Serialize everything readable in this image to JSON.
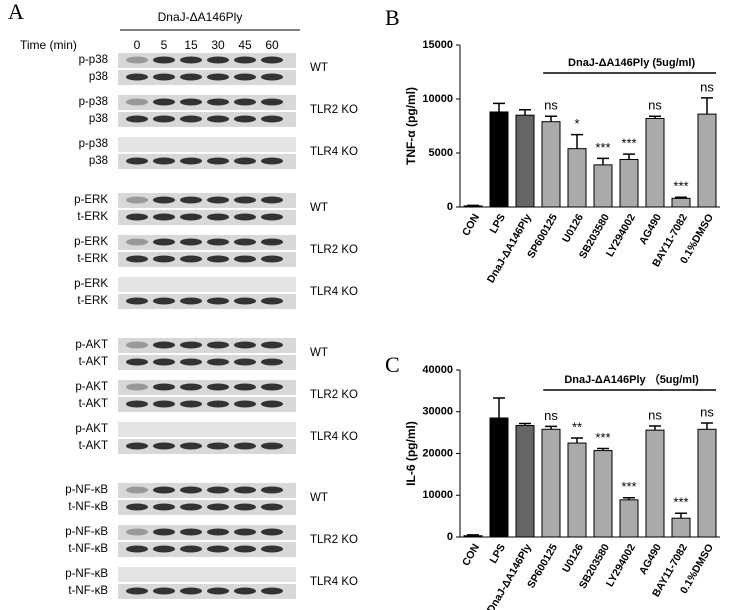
{
  "panel_a": {
    "letter": "A",
    "treatment": "DnaJ-ΔA146Ply",
    "time_label": "Time (min)",
    "times": [
      0,
      5,
      15,
      30,
      45,
      60
    ],
    "groups": [
      [
        {
          "rows": [
            "p-p38",
            "p38"
          ],
          "condition": "WT"
        },
        {
          "rows": [
            "p-p38",
            "p38"
          ],
          "condition": "TLR2 KO"
        },
        {
          "rows": [
            "p-p38",
            "p38"
          ],
          "condition": "TLR4 KO"
        }
      ],
      [
        {
          "rows": [
            "p-ERK",
            "t-ERK"
          ],
          "condition": "WT"
        },
        {
          "rows": [
            "p-ERK",
            "t-ERK"
          ],
          "condition": "TLR2 KO"
        },
        {
          "rows": [
            "p-ERK",
            "t-ERK"
          ],
          "condition": "TLR4 KO"
        }
      ],
      [
        {
          "rows": [
            "p-AKT",
            "t-AKT"
          ],
          "condition": "WT"
        },
        {
          "rows": [
            "p-AKT",
            "t-AKT"
          ],
          "condition": "TLR2 KO"
        },
        {
          "rows": [
            "p-AKT",
            "t-AKT"
          ],
          "condition": "TLR4 KO"
        }
      ],
      [
        {
          "rows": [
            "p-NF-κB",
            "t-NF-κB"
          ],
          "condition": "WT"
        },
        {
          "rows": [
            "p-NF-κB",
            "t-NF-κB"
          ],
          "condition": "TLR2 KO"
        },
        {
          "rows": [
            "p-NF-κB",
            "t-NF-κB"
          ],
          "condition": "TLR4 KO"
        }
      ]
    ]
  },
  "chart_data": [
    {
      "type": "bar",
      "panel": "B",
      "y_label": "TNF-α (pg/ml)",
      "bracket_label": "DnaJ-ΔA146Ply (5ug/ml)",
      "categories": [
        "CON",
        "LPS",
        "DnaJ-ΔA146Ply",
        "SP600125",
        "U0126",
        "SB203580",
        "LY294002",
        "AG490",
        "BAY11-7082",
        "0.1%DMSO"
      ],
      "values": [
        100,
        8800,
        8500,
        7900,
        5400,
        3900,
        4400,
        8200,
        800,
        8600
      ],
      "errors": [
        50,
        800,
        500,
        500,
        1300,
        600,
        500,
        200,
        100,
        1500
      ],
      "colors": [
        "#000000",
        "#000000",
        "#666666",
        "#aaaaaa",
        "#aaaaaa",
        "#aaaaaa",
        "#aaaaaa",
        "#aaaaaa",
        "#aaaaaa",
        "#aaaaaa"
      ],
      "significance": [
        null,
        null,
        null,
        "ns",
        "*",
        "***",
        "***",
        "ns",
        "***",
        "ns"
      ],
      "ylim": [
        0,
        15000
      ],
      "yticks": [
        0,
        5000,
        10000,
        15000
      ]
    },
    {
      "type": "bar",
      "panel": "C",
      "y_label": "IL-6 (pg/ml)",
      "bracket_label": "DnaJ-ΔA146Ply （5ug/ml)",
      "categories": [
        "CON",
        "LPS",
        "DnaJ-ΔA146Ply",
        "SP600125",
        "U0126",
        "SB203580",
        "LY294002",
        "AG490",
        "BAY11-7082",
        "0.1%DMSO"
      ],
      "values": [
        300,
        28500,
        26700,
        25800,
        22500,
        20700,
        8900,
        25600,
        4500,
        25800
      ],
      "errors": [
        200,
        4800,
        500,
        700,
        1200,
        500,
        500,
        1000,
        1200,
        1500
      ],
      "colors": [
        "#000000",
        "#000000",
        "#666666",
        "#aaaaaa",
        "#aaaaaa",
        "#aaaaaa",
        "#aaaaaa",
        "#aaaaaa",
        "#aaaaaa",
        "#aaaaaa"
      ],
      "significance": [
        null,
        null,
        null,
        "ns",
        "**",
        "***",
        "***",
        "ns",
        "***",
        "ns"
      ],
      "ylim": [
        0,
        40000
      ],
      "yticks": [
        0,
        10000,
        20000,
        30000,
        40000
      ]
    }
  ]
}
